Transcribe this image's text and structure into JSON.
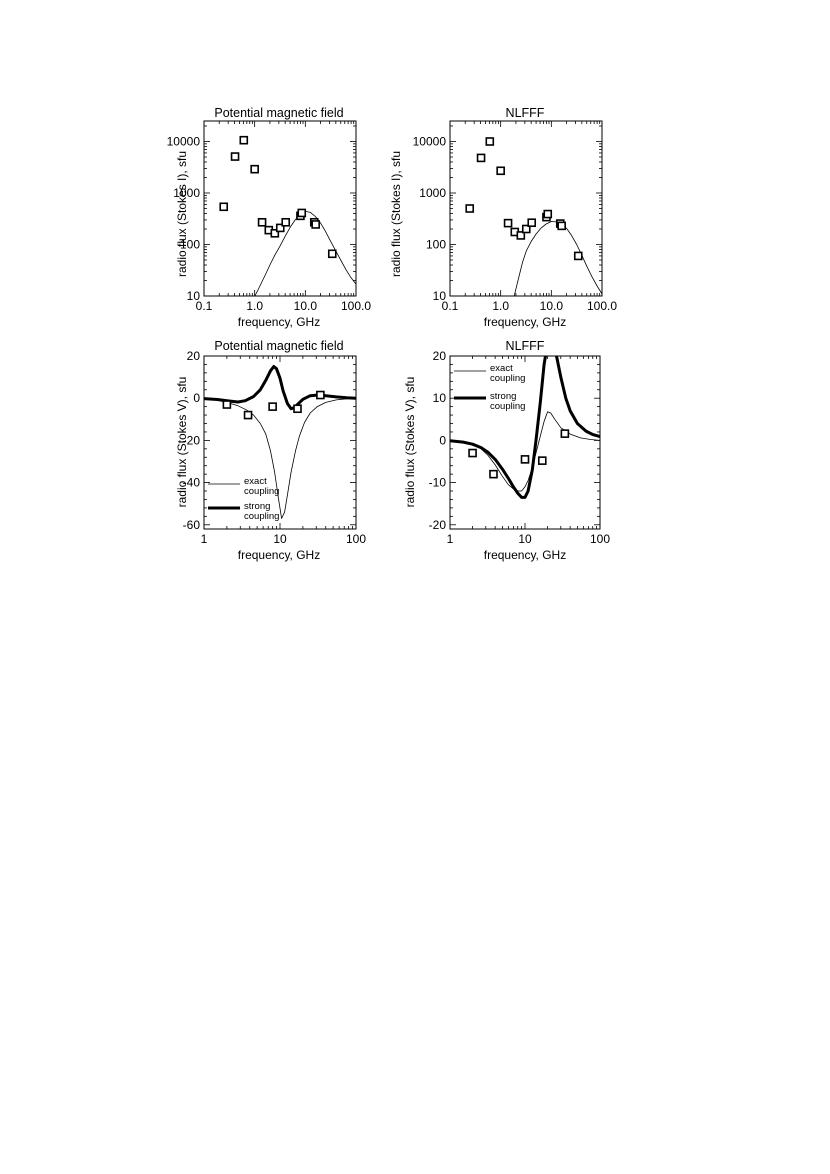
{
  "chart_data": [
    {
      "id": "i-potential",
      "type": "scatter",
      "title": "Potential magnetic field",
      "xlabel": "frequency, GHz",
      "ylabel": "radio flux (Stokes I), sfu",
      "xscale": "log",
      "yscale": "log",
      "xlim": [
        0.1,
        100
      ],
      "ylim": [
        10,
        25000
      ],
      "xticks": [
        0.1,
        1,
        10,
        100
      ],
      "xtick_labels": [
        "0.1",
        "1.0",
        "10.0",
        "100.0"
      ],
      "yticks": [
        10,
        100,
        1000,
        10000
      ],
      "ytick_labels": [
        "10",
        "100",
        "1000",
        "10000"
      ],
      "observed": {
        "x": [
          0.245,
          0.41,
          0.61,
          1.0,
          1.4,
          1.9,
          2.5,
          3.2,
          4.1,
          8.0,
          8.5,
          15.0,
          16.0,
          34.0
        ],
        "y": [
          540,
          5100,
          10600,
          2900,
          270,
          190,
          165,
          210,
          270,
          360,
          410,
          270,
          245,
          66
        ]
      },
      "model": {
        "x": [
          0.9,
          1.2,
          1.6,
          2.0,
          2.5,
          3.2,
          4.0,
          5.0,
          6.3,
          7.9,
          10.0,
          12.6,
          15.8,
          20.0,
          25.0,
          31.6,
          40.0,
          50.0,
          63.0,
          79.0,
          100.0
        ],
        "y": [
          8,
          14,
          25,
          40,
          62,
          95,
          145,
          215,
          300,
          390,
          440,
          420,
          350,
          260,
          180,
          115,
          75,
          50,
          33,
          23,
          17
        ]
      },
      "grid": false
    },
    {
      "id": "i-nlfff",
      "type": "scatter",
      "title": "NLFFF",
      "xlabel": "frequency, GHz",
      "ylabel": "radio flux (Stokes I), sfu",
      "xscale": "log",
      "yscale": "log",
      "xlim": [
        0.1,
        100
      ],
      "ylim": [
        10,
        25000
      ],
      "xticks": [
        0.1,
        1,
        10,
        100
      ],
      "xtick_labels": [
        "0.1",
        "1.0",
        "10.0",
        "100.0"
      ],
      "yticks": [
        10,
        100,
        1000,
        10000
      ],
      "ytick_labels": [
        "10",
        "100",
        "1000",
        "10000"
      ],
      "observed": {
        "x": [
          0.245,
          0.41,
          0.61,
          1.0,
          1.4,
          1.9,
          2.5,
          3.2,
          4.1,
          8.0,
          8.5,
          15.0,
          16.0,
          34.0
        ],
        "y": [
          500,
          4800,
          10000,
          2700,
          260,
          175,
          150,
          200,
          265,
          340,
          390,
          255,
          230,
          60
        ]
      },
      "model": {
        "x": [
          1.8,
          2.2,
          2.7,
          3.2,
          4.0,
          5.0,
          6.3,
          7.9,
          10.0,
          12.6,
          15.8,
          20.0,
          25.0,
          31.6,
          40.0,
          50.0,
          63.0,
          79.0,
          100.0
        ],
        "y": [
          9,
          20,
          45,
          75,
          115,
          160,
          210,
          250,
          280,
          275,
          250,
          205,
          150,
          100,
          62,
          38,
          24,
          16,
          11
        ]
      },
      "grid": false
    },
    {
      "id": "v-potential",
      "type": "line",
      "title": "Potential magnetic field",
      "xlabel": "frequency, GHz",
      "ylabel": "radio flux (Stokes V), sfu",
      "xscale": "log",
      "yscale": "linear",
      "xlim": [
        1,
        100
      ],
      "ylim": [
        -62,
        20
      ],
      "xticks": [
        1,
        10,
        100
      ],
      "xtick_labels": [
        "1",
        "10",
        "100"
      ],
      "yticks": [
        20,
        0,
        -20,
        -40,
        -60
      ],
      "ytick_labels": [
        "20",
        "0",
        "-20",
        "-40",
        "-60"
      ],
      "legend": [
        "exact coupling",
        "strong coupling"
      ],
      "legend_placement": "bottom-left",
      "observed": {
        "x": [
          2.0,
          3.8,
          8.0,
          17.0,
          34.0
        ],
        "y": [
          -3,
          -8,
          -4,
          -5,
          1.5
        ]
      },
      "series": [
        {
          "name": "exact coupling",
          "x": [
            1.0,
            1.4,
            2.0,
            2.8,
            3.6,
            4.5,
            5.5,
            6.5,
            7.5,
            8.5,
            9.5,
            10.5,
            11.5,
            12.5,
            14.0,
            16.0,
            18.0,
            21.0,
            25.0,
            31.0,
            40.0,
            55.0,
            75.0,
            100.0
          ],
          "y": [
            -0.3,
            -0.8,
            -2,
            -3.6,
            -5.5,
            -8,
            -12,
            -17,
            -25,
            -35,
            -47,
            -57,
            -54,
            -46,
            -35,
            -25,
            -18,
            -11.5,
            -7,
            -4,
            -2,
            -0.8,
            -0.3,
            0
          ]
        },
        {
          "name": "strong coupling",
          "x": [
            1.0,
            1.5,
            2.0,
            2.8,
            3.5,
            4.5,
            5.5,
            6.5,
            7.5,
            8.3,
            9.0,
            10.0,
            11.0,
            12.5,
            14.0,
            15.5,
            17.0,
            20.0,
            25.0,
            32.0,
            40.0,
            55.0,
            75.0,
            100.0
          ],
          "y": [
            -0.2,
            -0.6,
            -1.2,
            -1.8,
            -1.2,
            0.8,
            4,
            8.5,
            13,
            15,
            14,
            9.5,
            3.5,
            -2.5,
            -5,
            -4.5,
            -3,
            -0.5,
            1.2,
            1.5,
            1.2,
            0.6,
            0.2,
            0
          ]
        }
      ],
      "grid": false
    },
    {
      "id": "v-nlfff",
      "type": "line",
      "title": "NLFFF",
      "xlabel": "frequency, GHz",
      "ylabel": "radio flux (Stokes V), sfu",
      "xscale": "log",
      "yscale": "linear",
      "xlim": [
        1,
        100
      ],
      "ylim": [
        -21,
        20
      ],
      "xticks": [
        1,
        10,
        100
      ],
      "xtick_labels": [
        "1",
        "10",
        "100"
      ],
      "yticks": [
        20,
        10,
        0,
        -10,
        -20
      ],
      "ytick_labels": [
        "20",
        "10",
        "0",
        "-10",
        "-20"
      ],
      "legend": [
        "exact coupling",
        "strong coupling"
      ],
      "legend_placement": "top-left",
      "observed": {
        "x": [
          2.0,
          3.8,
          10.0,
          17.0,
          34.0
        ],
        "y": [
          -3,
          -8,
          -4.5,
          -4.8,
          1.6
        ]
      },
      "series": [
        {
          "name": "exact coupling",
          "x": [
            1.0,
            1.5,
            2.0,
            2.6,
            3.2,
            4.0,
            5.0,
            6.0,
            7.0,
            8.0,
            9.0,
            10.0,
            11.0,
            12.5,
            14.0,
            16.0,
            18.0,
            20.0,
            22.0,
            25.0,
            30.0,
            40.0,
            55.0,
            75.0,
            100.0
          ],
          "y": [
            -0.1,
            -0.4,
            -1,
            -2,
            -3.5,
            -5.8,
            -8.5,
            -10.5,
            -11.5,
            -12,
            -12,
            -11,
            -9.5,
            -6.5,
            -3,
            1,
            4.5,
            6.8,
            6.5,
            5,
            3,
            1.5,
            0.6,
            0.2,
            0
          ]
        },
        {
          "name": "strong coupling",
          "x": [
            1.0,
            1.5,
            2.0,
            2.6,
            3.2,
            4.0,
            5.0,
            6.0,
            7.0,
            8.0,
            9.0,
            10.0,
            11.0,
            12.5,
            14.0,
            16.0,
            18.0,
            20.0,
            22.0,
            25.0,
            30.0,
            35.0,
            40.0,
            50.0,
            65.0,
            80.0,
            100.0
          ],
          "y": [
            -0.1,
            -0.4,
            -0.9,
            -1.7,
            -2.8,
            -4.5,
            -6.8,
            -9,
            -11,
            -12.5,
            -13.5,
            -13.5,
            -12,
            -7,
            0,
            9,
            18,
            23,
            25.5,
            22,
            15,
            10,
            7,
            4,
            2.2,
            1.4,
            0.9
          ]
        }
      ],
      "grid": false
    }
  ]
}
